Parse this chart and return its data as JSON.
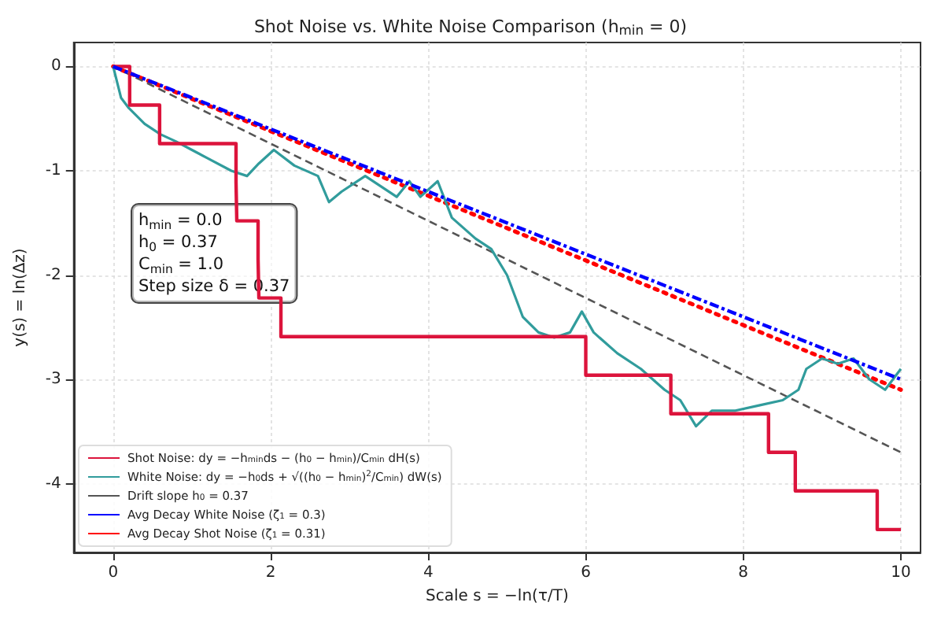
{
  "chart_data": {
    "type": "line",
    "title": "Shot Noise vs. White Noise Comparison (h$_{min}$ = 0)",
    "xlabel": "Scale s = −ln(τ/T)",
    "ylabel": "y(s) = ln(Δz)",
    "xlim": [
      -0.5,
      10.25
    ],
    "xticks": [
      0,
      2,
      4,
      6,
      8,
      10
    ],
    "ylim": [
      -4.66,
      0.23
    ],
    "yticks": [
      -4,
      -3,
      -2,
      -1,
      0
    ],
    "grid": true,
    "legend": "bottom left",
    "marker": "none",
    "annotations": [
      "h$_{min}$ = 0.0",
      "h$_{0}$ = 0.37",
      "C$_{min}$ = 1.0",
      "Step size δ = 0.37"
    ],
    "series": [
      {
        "name": "Shot Noise: dy = −h$_{min}$ds − (h$_{0}$ − h$_{min}$)/C$_{min}$ dH(s)",
        "type": "step",
        "color": "#dc143c",
        "line_style": "solid",
        "x": [
          0,
          0.21,
          0.59,
          1.56,
          1.57,
          1.84,
          1.85,
          2.13,
          6.0,
          7.08,
          8.32,
          8.66,
          9.7,
          10
        ],
        "values": [
          0,
          -0.37,
          -0.74,
          -1.11,
          -1.48,
          -1.85,
          -2.22,
          -2.59,
          -2.96,
          -3.33,
          -3.7,
          -4.07,
          -4.44,
          -4.44
        ]
      },
      {
        "name": "White Noise: dy = −h$_{0}$ds + √((h$_{0}$ − h$_{min}$)$^{2}$/C$_{min}$) dW(s)",
        "color": "#319c9c",
        "line_style": "solid",
        "x": [
          0,
          0.1,
          0.2,
          0.4,
          0.6,
          0.8,
          1.0,
          1.2,
          1.5,
          1.7,
          1.85,
          2.04,
          2.3,
          2.6,
          2.74,
          2.9,
          3.2,
          3.4,
          3.6,
          3.76,
          3.9,
          4.12,
          4.3,
          4.6,
          4.8,
          5.0,
          5.2,
          5.4,
          5.6,
          5.8,
          5.95,
          6.1,
          6.4,
          6.7,
          7.0,
          7.2,
          7.4,
          7.6,
          7.9,
          8.2,
          8.5,
          8.7,
          8.8,
          9.0,
          9.2,
          9.4,
          9.6,
          9.8,
          10
        ],
        "values": [
          0,
          -0.3,
          -0.4,
          -0.55,
          -0.65,
          -0.72,
          -0.8,
          -0.88,
          -1.0,
          -1.05,
          -0.93,
          -0.8,
          -0.95,
          -1.05,
          -1.3,
          -1.2,
          -1.05,
          -1.15,
          -1.25,
          -1.1,
          -1.25,
          -1.1,
          -1.45,
          -1.65,
          -1.75,
          -2.0,
          -2.4,
          -2.55,
          -2.6,
          -2.55,
          -2.35,
          -2.55,
          -2.75,
          -2.9,
          -3.1,
          -3.2,
          -3.45,
          -3.3,
          -3.3,
          -3.25,
          -3.2,
          -3.1,
          -2.9,
          -2.8,
          -2.85,
          -2.8,
          -3.0,
          -3.1,
          -2.9
        ]
      },
      {
        "name": "Drift slope h$_{0}$ = 0.37",
        "color": "#555555",
        "line_style": "dashed",
        "x": [
          0,
          10
        ],
        "values": [
          0,
          -3.7
        ]
      },
      {
        "name": "Avg Decay White Noise (ζ$_{1}$ = 0.3)",
        "color": "#0000ff",
        "line_style": "dashdot",
        "x": [
          0,
          10
        ],
        "values": [
          0,
          -3.0
        ]
      },
      {
        "name": "Avg Decay Shot Noise (ζ$_{1}$ = 0.31)",
        "color": "#ff0000",
        "line_style": "dotted",
        "x": [
          0,
          10
        ],
        "values": [
          0,
          -3.1
        ]
      }
    ]
  }
}
